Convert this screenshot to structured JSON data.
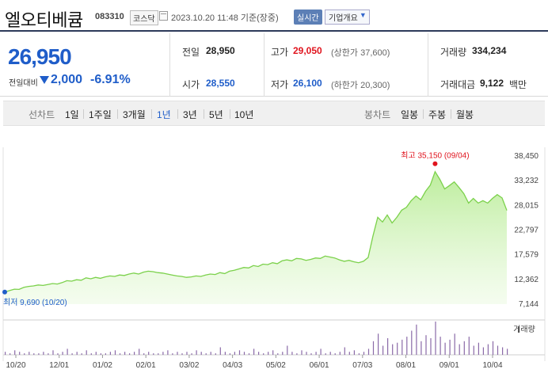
{
  "header": {
    "name": "엘오티베큠",
    "code": "083310",
    "market": "코스닥",
    "datetime": "2023.10.20 11:48 기준(장중)",
    "realtime_label": "실시간",
    "overview_label": "기업개요"
  },
  "quote": {
    "price": "26,950",
    "change_label": "전일대비",
    "change": "2,000",
    "change_pct": "-6.91%",
    "prev_label": "전일",
    "prev": "28,950",
    "high_label": "고가",
    "high": "29,050",
    "upper_limit": "(상한가 37,600)",
    "volume_label": "거래량",
    "volume": "334,234",
    "open_label": "시가",
    "open": "28,550",
    "low_label": "저가",
    "low": "26,100",
    "lower_limit": "(하한가 20,300)",
    "amount_label": "거래대금",
    "amount": "9,122",
    "amount_unit": "백만"
  },
  "tabs": {
    "line_caption": "선차트",
    "periods": [
      "1일",
      "1주일",
      "3개월",
      "1년",
      "3년",
      "5년",
      "10년"
    ],
    "selected": "1년",
    "candle_caption": "봉차트",
    "candles": [
      "일봉",
      "주봉",
      "월봉"
    ]
  },
  "colors": {
    "accent_blue": "#1f5dc9",
    "rise_red": "#e0141e",
    "line_green": "#7bd14b",
    "volume_purple": "#8a6aa8"
  },
  "chart_data": {
    "type": "area",
    "x_ticks": [
      "10/20",
      "12/01",
      "01/02",
      "02/01",
      "03/02",
      "04/03",
      "05/02",
      "06/01",
      "07/03",
      "08/01",
      "09/01",
      "10/04"
    ],
    "y_ticks": [
      "38,450",
      "33,232",
      "28,015",
      "22,797",
      "17,579",
      "12,362",
      "7,144"
    ],
    "ylim": [
      7144,
      38450
    ],
    "max_label": "최고  35,150 (09/04)",
    "min_label": "최저  9,690 (10/20)",
    "volume_label": "거래량",
    "series": [
      {
        "values": [
          9690,
          10000,
          10300,
          10250,
          10700,
          10900,
          11000,
          11200,
          11100,
          11300,
          11500,
          11400,
          11700,
          12100,
          12000,
          12300,
          12200,
          12700,
          12500,
          12800,
          12600,
          12900,
          13100,
          13000,
          13300,
          13200,
          13500,
          13700,
          13500,
          13900,
          14100,
          14000,
          13800,
          13700,
          13500,
          13300,
          13100,
          13000,
          12800,
          12900,
          13100,
          13000,
          13300,
          13500,
          13400,
          13800,
          13600,
          14100,
          14300,
          14600,
          14900,
          14800,
          15300,
          15100,
          15600,
          15500,
          15900,
          15700,
          16300,
          16500,
          16300,
          16800,
          16700,
          16400,
          16600,
          16900,
          16800,
          17300,
          17100,
          16900,
          16500,
          16200,
          16400,
          16100,
          15900,
          16200,
          17000,
          21500,
          25500,
          24500,
          26000,
          24300,
          25500,
          27000,
          27600,
          29000,
          30000,
          29200,
          31000,
          32300,
          35150,
          33500,
          31500,
          32200,
          33000,
          31800,
          30500,
          28500,
          29500,
          28500,
          29000,
          28500,
          29500,
          30300,
          29600,
          26950
        ]
      }
    ],
    "volume": [
      2,
      1,
      3,
      2,
      1,
      2,
      1,
      1,
      2,
      1,
      3,
      1,
      2,
      4,
      1,
      2,
      1,
      3,
      1,
      2,
      1,
      1,
      2,
      3,
      1,
      2,
      1,
      2,
      4,
      1,
      2,
      1,
      1,
      2,
      3,
      1,
      2,
      1,
      2,
      1,
      3,
      2,
      1,
      2,
      1,
      5,
      2,
      1,
      2,
      3,
      2,
      1,
      4,
      2,
      1,
      2,
      3,
      1,
      2,
      6,
      2,
      1,
      3,
      2,
      1,
      2,
      4,
      1,
      2,
      1,
      2,
      5,
      2,
      3,
      1,
      2,
      4,
      9,
      14,
      6,
      11,
      7,
      8,
      10,
      12,
      16,
      20,
      9,
      13,
      11,
      22,
      12,
      8,
      10,
      14,
      7,
      9,
      12,
      6,
      8,
      5,
      7,
      9,
      6,
      5,
      4
    ]
  }
}
